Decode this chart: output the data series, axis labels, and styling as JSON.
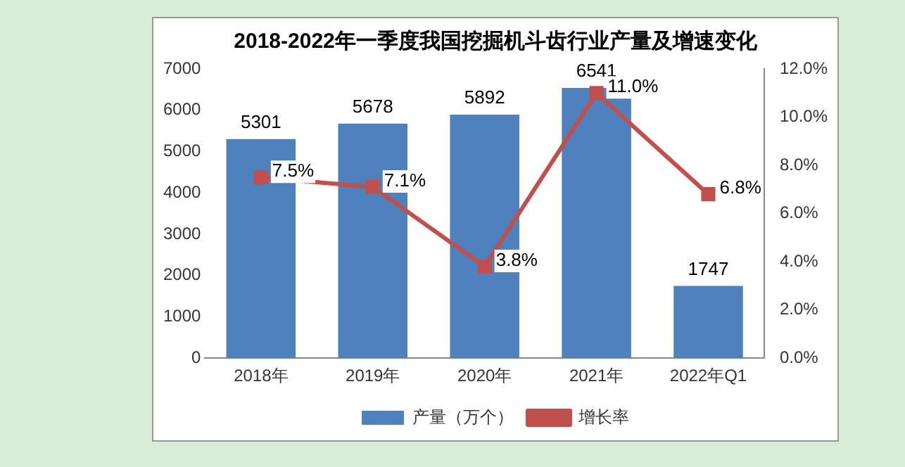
{
  "chart_data": {
    "type": "bar",
    "title": "2018-2022年一季度我国挖掘机斗齿行业产量及增速变化",
    "categories": [
      "2018年",
      "2019年",
      "2020年",
      "2021年",
      "2022年Q1"
    ],
    "series": [
      {
        "name": "产量（万个）",
        "color": "#4f81bd",
        "values": [
          5301,
          5678,
          5892,
          6541,
          1747
        ],
        "value_labels": [
          "5301",
          "5678",
          "5892",
          "6541",
          "1747"
        ]
      },
      {
        "name": "增长率",
        "type": "line",
        "axis": "y2",
        "color": "#c0504d",
        "values": [
          7.5,
          7.1,
          3.8,
          11.0,
          6.8
        ],
        "value_labels": [
          "7.5%",
          "7.1%",
          "3.8%",
          "11.0%",
          "6.8%"
        ],
        "marker": "square"
      }
    ],
    "ylim": [
      0,
      7000
    ],
    "yticks": [
      0,
      1000,
      2000,
      3000,
      4000,
      5000,
      6000,
      7000
    ],
    "y2lim": [
      0,
      12
    ],
    "y2ticks": [
      {
        "value": 0,
        "label": "0.0%"
      },
      {
        "value": 2,
        "label": "2.0%"
      },
      {
        "value": 4,
        "label": "4.0%"
      },
      {
        "value": 6,
        "label": "6.0%"
      },
      {
        "value": 8,
        "label": "8.0%"
      },
      {
        "value": 10,
        "label": "10.0%"
      },
      {
        "value": 12,
        "label": "12.0%"
      }
    ],
    "legend": "bottom",
    "grid": false
  }
}
